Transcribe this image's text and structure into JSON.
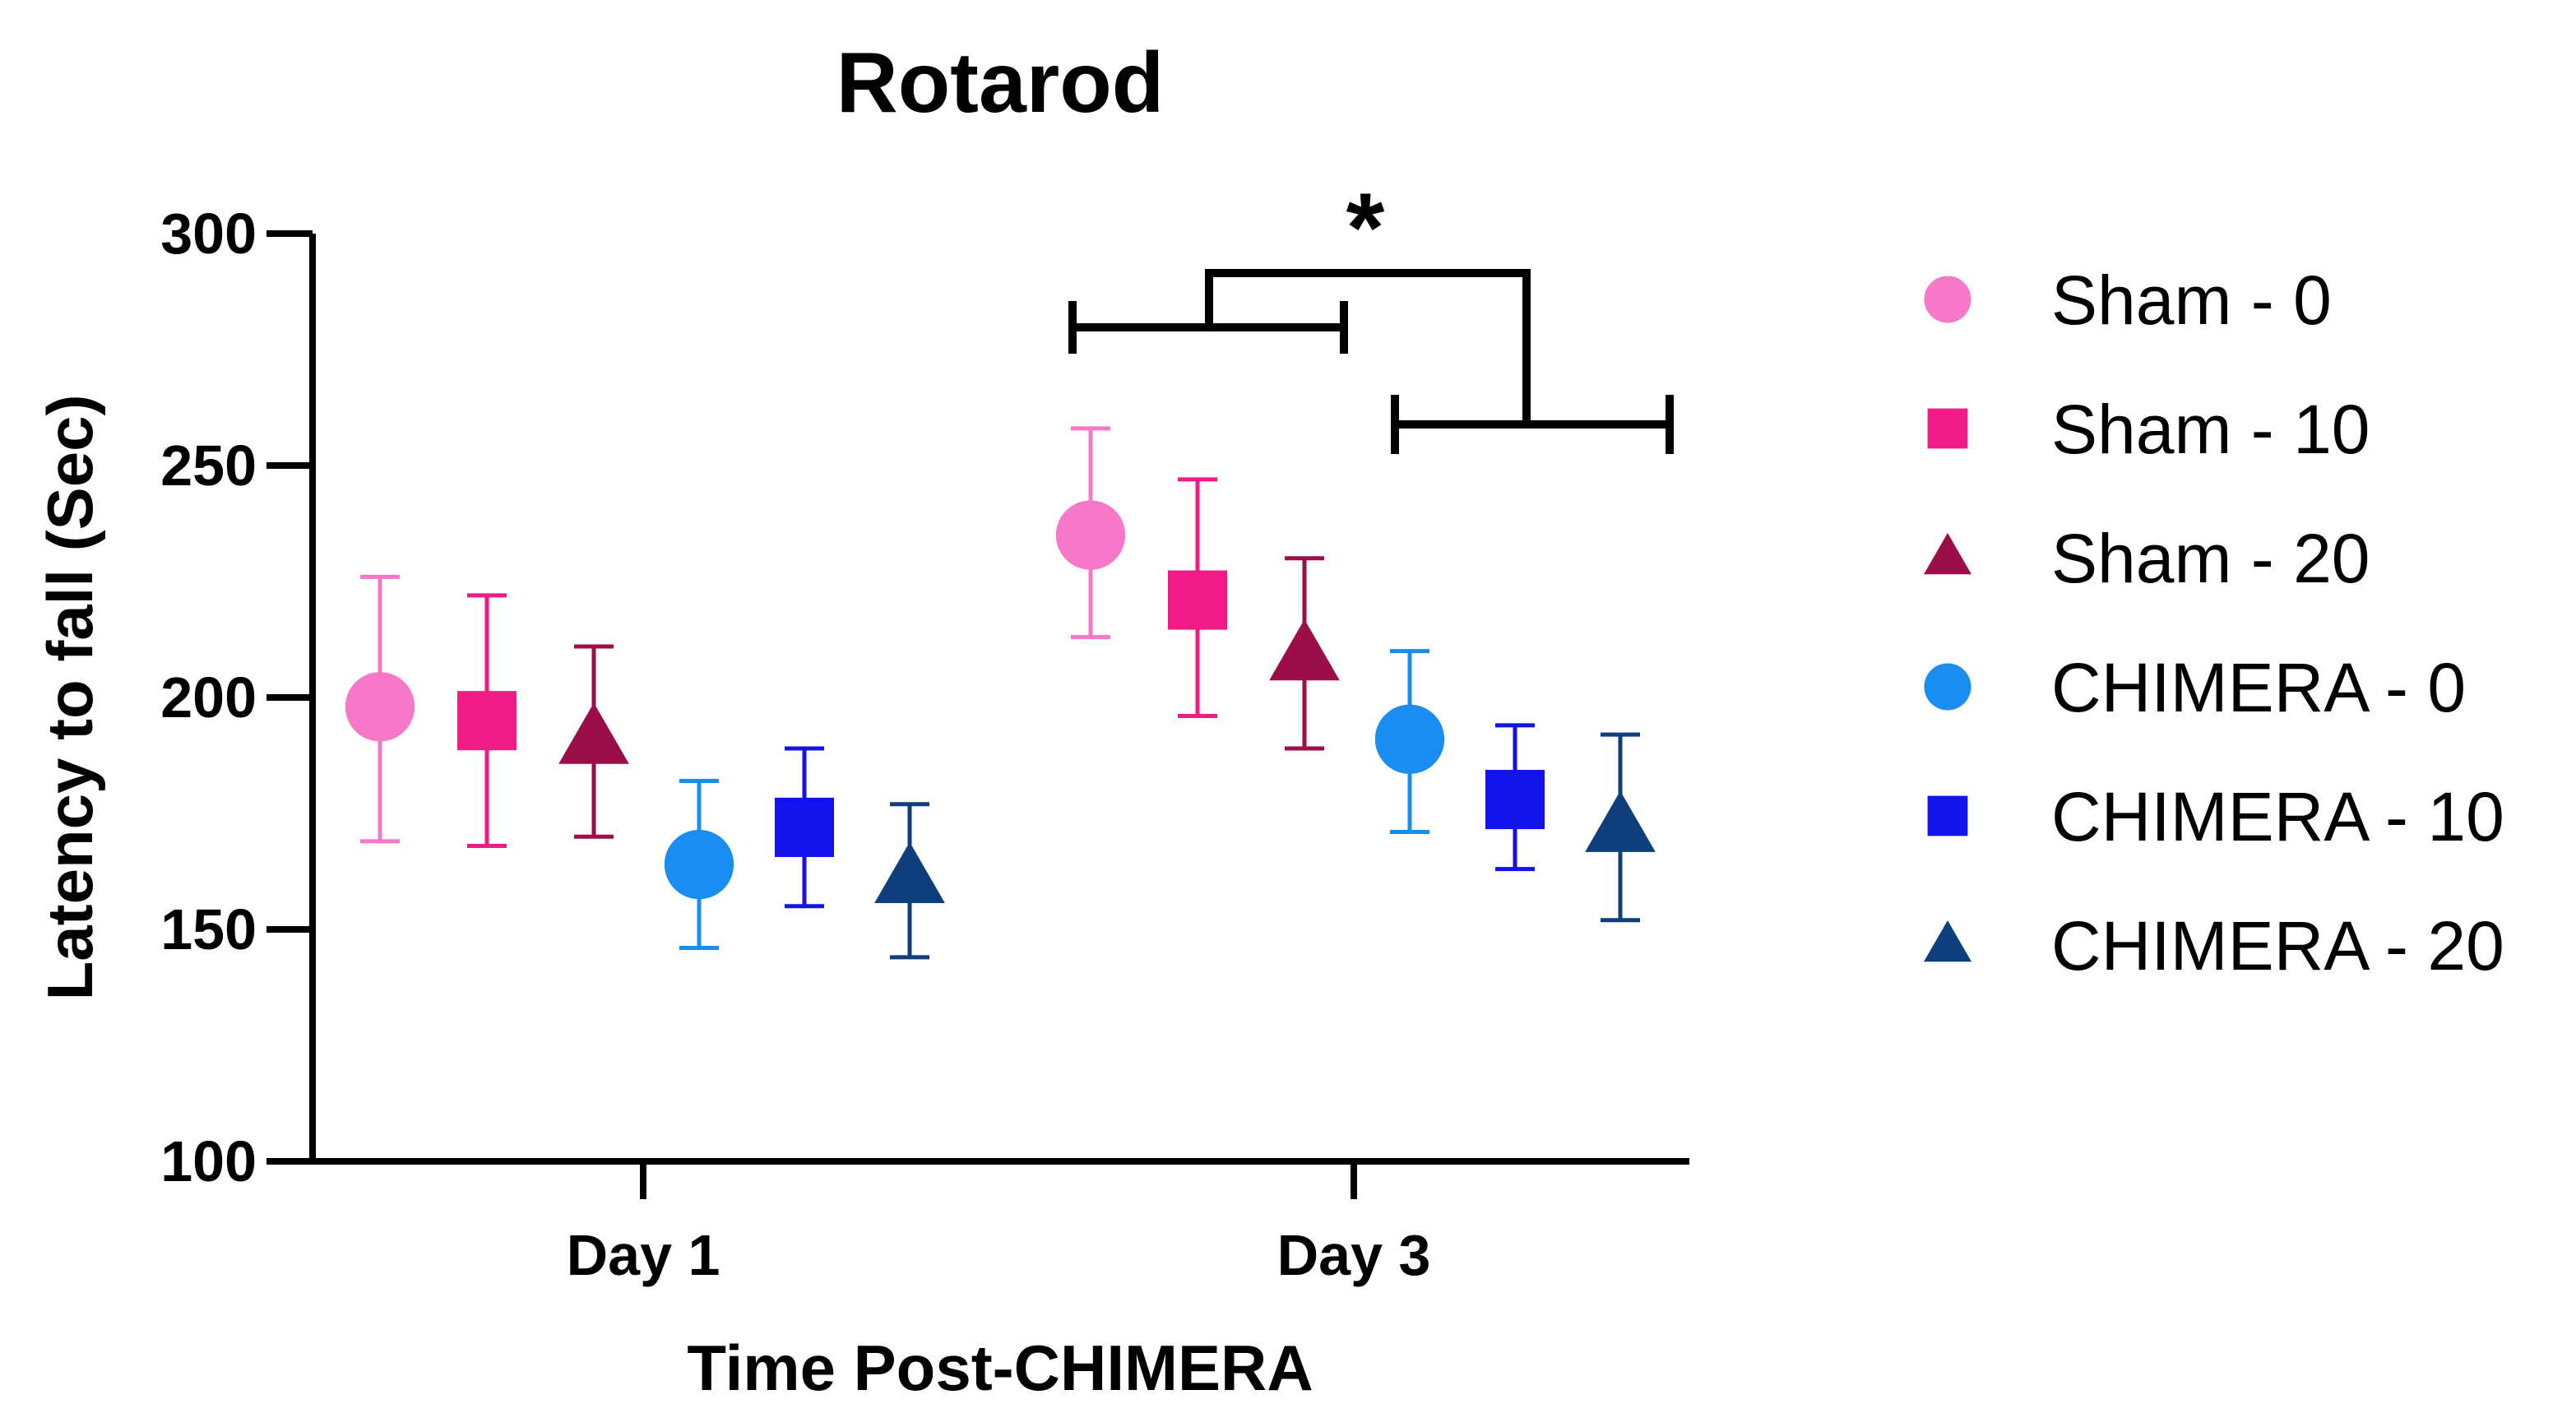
{
  "chart_data": {
    "type": "scatter",
    "title": "Rotarod",
    "xlabel": "Time Post-CHIMERA",
    "ylabel": "Latency to fall (Sec)",
    "ylim": [
      100,
      300
    ],
    "yticks": [
      "100",
      "150",
      "200",
      "250",
      "300"
    ],
    "categories": [
      "Day 1",
      "Day 3"
    ],
    "significance": "*",
    "series": [
      {
        "name": "Sham - 0",
        "marker": "circle",
        "color": "#f777c9",
        "points": [
          {
            "x": "Day 1",
            "mean": 198,
            "lower": 169,
            "upper": 226
          },
          {
            "x": "Day 3",
            "mean": 235,
            "lower": 213,
            "upper": 258
          }
        ]
      },
      {
        "name": "Sham - 10",
        "marker": "square",
        "color": "#ee1c84",
        "points": [
          {
            "x": "Day 1",
            "mean": 195,
            "lower": 168,
            "upper": 222
          },
          {
            "x": "Day 3",
            "mean": 221,
            "lower": 196,
            "upper": 247
          }
        ]
      },
      {
        "name": "Sham - 20",
        "marker": "triangle",
        "color": "#9c0e48",
        "points": [
          {
            "x": "Day 1",
            "mean": 191,
            "lower": 170,
            "upper": 211
          },
          {
            "x": "Day 3",
            "mean": 209,
            "lower": 189,
            "upper": 230
          }
        ]
      },
      {
        "name": "CHIMERA - 0",
        "marker": "circle",
        "color": "#1a8df2",
        "points": [
          {
            "x": "Day 1",
            "mean": 164,
            "lower": 146,
            "upper": 182
          },
          {
            "x": "Day 3",
            "mean": 191,
            "lower": 171,
            "upper": 210
          }
        ]
      },
      {
        "name": "CHIMERA - 10",
        "marker": "square",
        "color": "#1212e9",
        "points": [
          {
            "x": "Day 1",
            "mean": 172,
            "lower": 155,
            "upper": 189
          },
          {
            "x": "Day 3",
            "mean": 178,
            "lower": 163,
            "upper": 194
          }
        ]
      },
      {
        "name": "CHIMERA - 20",
        "marker": "triangle",
        "color": "#0e3f7c",
        "points": [
          {
            "x": "Day 1",
            "mean": 161,
            "lower": 144,
            "upper": 177
          },
          {
            "x": "Day 3",
            "mean": 172,
            "lower": 152,
            "upper": 192
          }
        ]
      }
    ]
  }
}
